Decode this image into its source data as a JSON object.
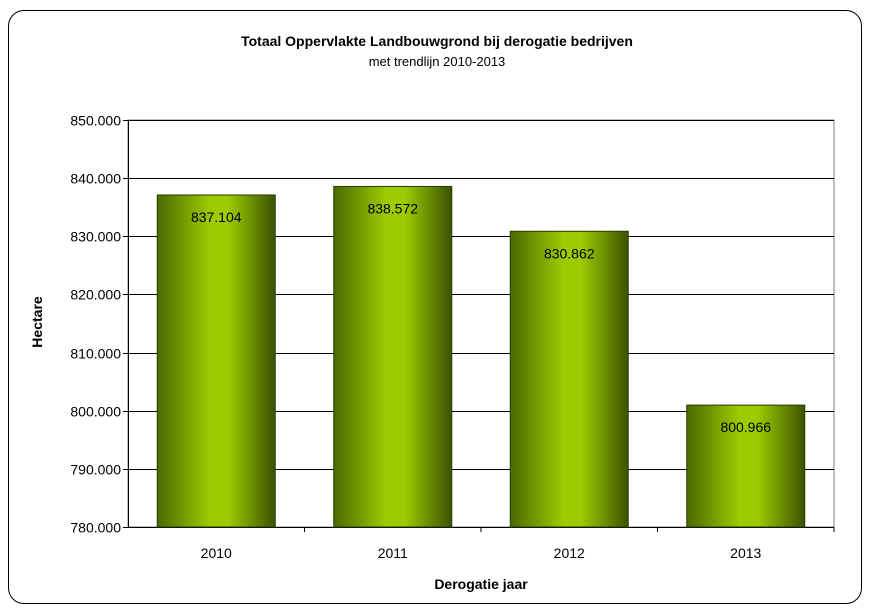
{
  "chart_data": {
    "type": "bar",
    "title": "Totaal Oppervlakte Landbouwgrond bij derogatie bedrijven",
    "subtitle": "met trendlijn 2010-2013",
    "xlabel": "Derogatie jaar",
    "ylabel": "Hectare",
    "categories": [
      "2010",
      "2011",
      "2012",
      "2013"
    ],
    "values": [
      837104,
      838572,
      830862,
      800966
    ],
    "data_labels": [
      "837.104",
      "838.572",
      "830.862",
      "800.966"
    ],
    "ylim": [
      780000,
      850000
    ],
    "yticks": [
      780000,
      790000,
      800000,
      810000,
      820000,
      830000,
      840000,
      850000
    ],
    "ytick_labels": [
      "780.000",
      "790.000",
      "800.000",
      "810.000",
      "820.000",
      "830.000",
      "840.000",
      "850.000"
    ],
    "grid": true,
    "legend": "none",
    "colors": {
      "bar_light": "#9ccc00",
      "bar_dark": "#3a5200",
      "grid": "#000000",
      "plot_bg": "#ffffff"
    }
  }
}
